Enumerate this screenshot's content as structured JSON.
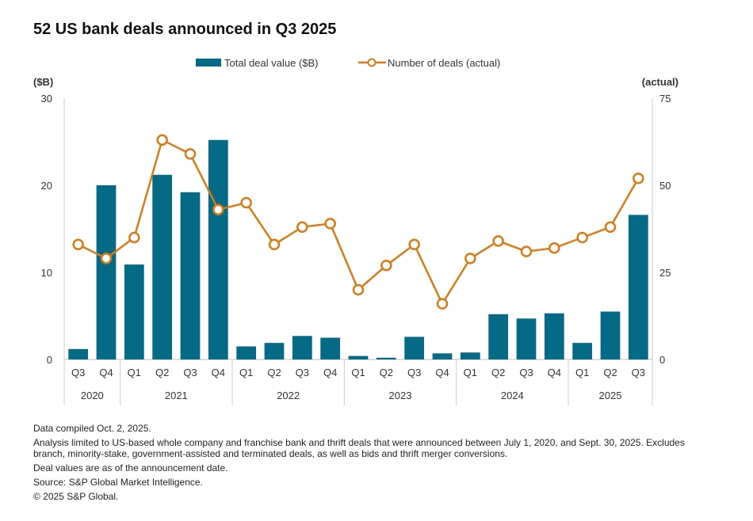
{
  "title": "52 US bank deals announced in Q3 2025",
  "chart_data": {
    "type": "bar+line",
    "title": "52 US bank deals announced in Q3 2025",
    "categories": [
      "Q3",
      "Q4",
      "Q1",
      "Q2",
      "Q3",
      "Q4",
      "Q1",
      "Q2",
      "Q3",
      "Q4",
      "Q1",
      "Q2",
      "Q3",
      "Q4",
      "Q1",
      "Q2",
      "Q3",
      "Q4",
      "Q1",
      "Q2",
      "Q3"
    ],
    "years": [
      {
        "label": "2020",
        "count": 2
      },
      {
        "label": "2021",
        "count": 4
      },
      {
        "label": "2022",
        "count": 4
      },
      {
        "label": "2023",
        "count": 4
      },
      {
        "label": "2024",
        "count": 4
      },
      {
        "label": "2025",
        "count": 3
      }
    ],
    "series": [
      {
        "name": "Total deal value ($B)",
        "type": "bar",
        "axis": "left",
        "color": "#046a85",
        "values": [
          1.2,
          20.0,
          10.9,
          21.2,
          19.2,
          25.2,
          1.5,
          1.9,
          2.7,
          2.5,
          0.4,
          0.2,
          2.6,
          0.7,
          0.8,
          5.2,
          4.7,
          5.3,
          1.9,
          5.5,
          16.6
        ]
      },
      {
        "name": "Number of deals (actual)",
        "type": "line",
        "axis": "right",
        "color": "#d97b15",
        "values": [
          33,
          29,
          35,
          63,
          59,
          43,
          45,
          33,
          38,
          39,
          20,
          27,
          33,
          16,
          29,
          34,
          31,
          32,
          35,
          38,
          52
        ]
      }
    ],
    "left_axis": {
      "label": "($B)",
      "ylim": [
        0,
        30
      ],
      "ticks": [
        "0",
        "10",
        "20",
        "30"
      ]
    },
    "right_axis": {
      "label": "(actual)",
      "ylim": [
        0,
        75
      ],
      "ticks": [
        "0",
        "25",
        "50",
        "75"
      ]
    },
    "legend": "top",
    "grid": false
  },
  "notes": [
    "Data compiled Oct. 2, 2025.",
    "Analysis limited to US-based whole company and franchise bank and thrift deals that were announced between July 1, 2020, and Sept. 30, 2025. Excludes branch, minority-stake, government-assisted and terminated deals, as well as bids and thrift merger conversions.",
    "Deal values are as of the announcement date.",
    "Source: S&P Global Market Intelligence.",
    "© 2025 S&P Global."
  ]
}
